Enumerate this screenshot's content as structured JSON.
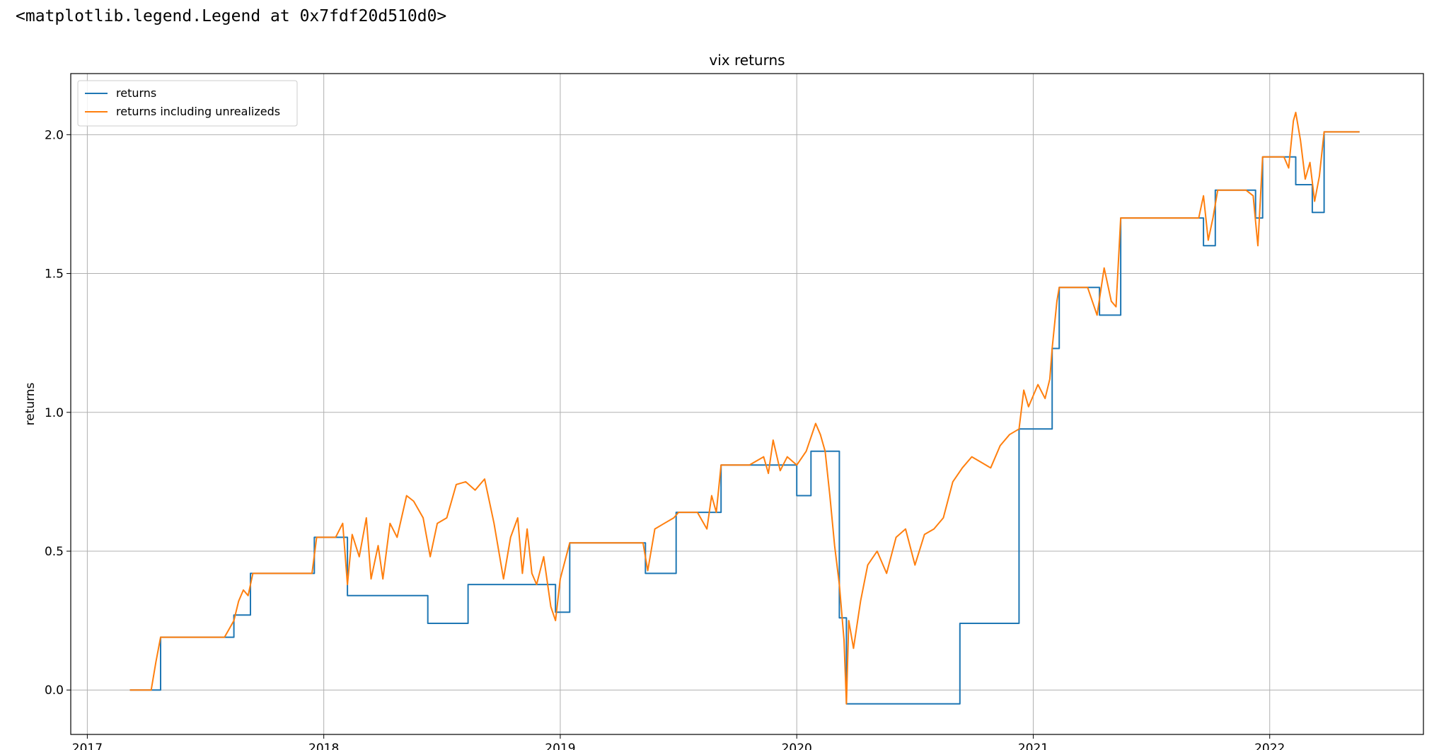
{
  "output_text": "<matplotlib.legend.Legend at 0x7fdf20d510d0>",
  "chart_data": {
    "type": "line",
    "title": "vix returns",
    "xlabel": "",
    "ylabel": "returns",
    "xlim": [
      2016.93,
      2022.65
    ],
    "ylim": [
      -0.16,
      2.22
    ],
    "x_ticks": [
      2017,
      2018,
      2019,
      2020,
      2021,
      2022
    ],
    "x_tick_labels": [
      "2017",
      "2018",
      "2019",
      "2020",
      "2021",
      "2022"
    ],
    "y_ticks": [
      0.0,
      0.5,
      1.0,
      1.5,
      2.0
    ],
    "y_tick_labels": [
      "0.0",
      "0.5",
      "1.0",
      "1.5",
      "2.0"
    ],
    "grid": true,
    "legend_position": "top-left",
    "series": [
      {
        "name": "returns",
        "color": "#1f77b4",
        "step": true,
        "x": [
          2017.18,
          2017.31,
          2017.62,
          2017.69,
          2017.96,
          2018.1,
          2018.44,
          2018.61,
          2018.98,
          2019.04,
          2019.36,
          2019.49,
          2019.68,
          2020.0,
          2020.06,
          2020.18,
          2020.21,
          2020.69,
          2020.94,
          2021.08,
          2021.11,
          2021.28,
          2021.37,
          2021.72,
          2021.77,
          2021.94,
          2021.97,
          2022.11,
          2022.18,
          2022.23,
          2022.38
        ],
        "values": [
          0.0,
          0.19,
          0.27,
          0.42,
          0.55,
          0.34,
          0.24,
          0.38,
          0.28,
          0.53,
          0.42,
          0.64,
          0.81,
          0.7,
          0.86,
          0.26,
          -0.05,
          0.24,
          0.94,
          1.23,
          1.45,
          1.35,
          1.7,
          1.6,
          1.8,
          1.7,
          1.92,
          1.82,
          1.72,
          2.01,
          2.01
        ]
      },
      {
        "name": "returns including unrealizeds",
        "color": "#ff7f0e",
        "step": false,
        "x": [
          2017.18,
          2017.27,
          2017.29,
          2017.31,
          2017.4,
          2017.5,
          2017.58,
          2017.6,
          2017.62,
          2017.64,
          2017.66,
          2017.68,
          2017.7,
          2017.8,
          2017.95,
          2017.97,
          2018.05,
          2018.08,
          2018.1,
          2018.12,
          2018.15,
          2018.18,
          2018.2,
          2018.23,
          2018.25,
          2018.28,
          2018.31,
          2018.35,
          2018.38,
          2018.42,
          2018.45,
          2018.48,
          2018.52,
          2018.56,
          2018.6,
          2018.64,
          2018.68,
          2018.72,
          2018.76,
          2018.79,
          2018.82,
          2018.84,
          2018.86,
          2018.88,
          2018.9,
          2018.93,
          2018.96,
          2018.98,
          2019.0,
          2019.04,
          2019.2,
          2019.35,
          2019.37,
          2019.4,
          2019.44,
          2019.48,
          2019.5,
          2019.58,
          2019.62,
          2019.64,
          2019.66,
          2019.68,
          2019.8,
          2019.86,
          2019.88,
          2019.9,
          2019.93,
          2019.96,
          2020.0,
          2020.04,
          2020.08,
          2020.1,
          2020.12,
          2020.14,
          2020.16,
          2020.18,
          2020.2,
          2020.21,
          2020.22,
          2020.24,
          2020.27,
          2020.3,
          2020.34,
          2020.38,
          2020.42,
          2020.46,
          2020.5,
          2020.54,
          2020.58,
          2020.62,
          2020.66,
          2020.7,
          2020.74,
          2020.78,
          2020.82,
          2020.86,
          2020.9,
          2020.94,
          2020.96,
          2020.98,
          2021.02,
          2021.05,
          2021.07,
          2021.08,
          2021.1,
          2021.11,
          2021.2,
          2021.23,
          2021.27,
          2021.3,
          2021.33,
          2021.35,
          2021.37,
          2021.45,
          2021.6,
          2021.7,
          2021.72,
          2021.74,
          2021.76,
          2021.78,
          2021.9,
          2021.93,
          2021.95,
          2021.97,
          2022.06,
          2022.08,
          2022.1,
          2022.11,
          2022.13,
          2022.15,
          2022.17,
          2022.19,
          2022.21,
          2022.23,
          2022.25,
          2022.38
        ],
        "values": [
          0.0,
          0.0,
          0.1,
          0.19,
          0.19,
          0.19,
          0.19,
          0.22,
          0.25,
          0.32,
          0.36,
          0.34,
          0.42,
          0.42,
          0.42,
          0.55,
          0.55,
          0.6,
          0.38,
          0.56,
          0.48,
          0.62,
          0.4,
          0.52,
          0.4,
          0.6,
          0.55,
          0.7,
          0.68,
          0.62,
          0.48,
          0.6,
          0.62,
          0.74,
          0.75,
          0.72,
          0.76,
          0.6,
          0.4,
          0.55,
          0.62,
          0.42,
          0.58,
          0.42,
          0.38,
          0.48,
          0.3,
          0.25,
          0.4,
          0.53,
          0.53,
          0.53,
          0.43,
          0.58,
          0.6,
          0.62,
          0.64,
          0.64,
          0.58,
          0.7,
          0.64,
          0.81,
          0.81,
          0.84,
          0.78,
          0.9,
          0.79,
          0.84,
          0.81,
          0.86,
          0.96,
          0.92,
          0.86,
          0.7,
          0.52,
          0.38,
          0.18,
          -0.05,
          0.25,
          0.15,
          0.32,
          0.45,
          0.5,
          0.42,
          0.55,
          0.58,
          0.45,
          0.56,
          0.58,
          0.62,
          0.75,
          0.8,
          0.84,
          0.82,
          0.8,
          0.88,
          0.92,
          0.94,
          1.08,
          1.02,
          1.1,
          1.05,
          1.12,
          1.23,
          1.4,
          1.45,
          1.45,
          1.45,
          1.35,
          1.52,
          1.4,
          1.38,
          1.7,
          1.7,
          1.7,
          1.7,
          1.78,
          1.62,
          1.7,
          1.8,
          1.8,
          1.78,
          1.6,
          1.92,
          1.92,
          1.88,
          2.05,
          2.08,
          1.98,
          1.84,
          1.9,
          1.76,
          1.85,
          2.01,
          2.01,
          2.01
        ]
      }
    ]
  }
}
